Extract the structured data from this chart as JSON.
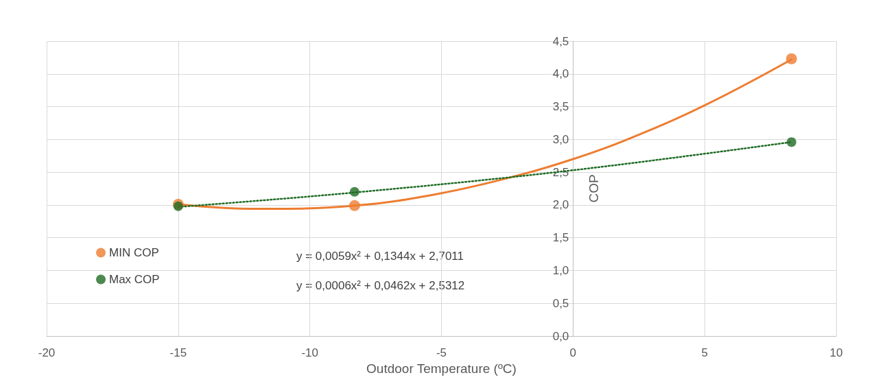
{
  "chart_data": {
    "type": "scatter",
    "xlabel": "Outdoor Temperature (ºC)",
    "ylabel": "COP",
    "xlim": [
      -20,
      10
    ],
    "xticks": [
      -20,
      -15,
      -10,
      -5,
      0,
      5,
      10
    ],
    "ylim": [
      0,
      4.5
    ],
    "yticks": [
      {
        "value": 0,
        "label": "0,0"
      },
      {
        "value": 0.5,
        "label": "0,5"
      },
      {
        "value": 1,
        "label": "1,0"
      },
      {
        "value": 1.5,
        "label": "1,5"
      },
      {
        "value": 2,
        "label": "2,0"
      },
      {
        "value": 2.5,
        "label": "2,5"
      },
      {
        "value": 3,
        "label": "3,0"
      },
      {
        "value": 3.5,
        "label": "3,5"
      },
      {
        "value": 4,
        "label": "4,0"
      },
      {
        "value": 4.5,
        "label": "4,5"
      }
    ],
    "grid": true,
    "legend": "left",
    "annotations": [
      "y = 0,0059x² + 0,1344x + 2,7011",
      "y = 0,0006x² + 0,0462x + 2,5312"
    ],
    "series": [
      {
        "type": "line",
        "color": "#ed7d31",
        "line_style": "solid",
        "marker": "none",
        "x": [
          -15,
          -12,
          -8.3,
          -5,
          -2,
          0,
          2,
          5,
          8.3
        ],
        "values": [
          2.01,
          1.94,
          1.99,
          2.18,
          2.46,
          2.7,
          2.99,
          3.52,
          4.22
        ]
      },
      {
        "type": "line",
        "color": "#1e6b24",
        "line_style": "dotted",
        "marker": "none",
        "x": [
          -15,
          -8.3,
          0,
          8.3
        ],
        "values": [
          1.97,
          2.19,
          2.53,
          2.96
        ]
      },
      {
        "name": "MIN COP",
        "color": "#ed7d31",
        "marker": "circle",
        "x": [
          -15,
          -8.3,
          8.3
        ],
        "values": [
          2.01,
          1.99,
          4.23
        ]
      },
      {
        "name": "Max COP",
        "color": "#1e6b24",
        "marker": "circle",
        "x": [
          -15,
          -8.3,
          8.3
        ],
        "values": [
          1.98,
          2.2,
          2.96
        ]
      }
    ]
  }
}
